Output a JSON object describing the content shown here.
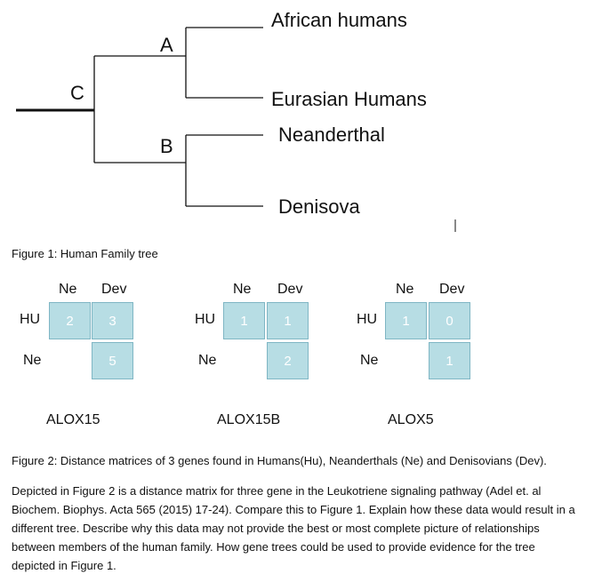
{
  "tree": {
    "nodes": {
      "a": "A",
      "b": "B",
      "c": "C"
    },
    "leaves": [
      "African humans",
      "Eurasian Humans",
      "Neanderthal",
      "Denisova"
    ]
  },
  "figure1_caption": "Figure 1: Human Family tree",
  "matrices": [
    {
      "gene": "ALOX15",
      "col_headers": [
        "Ne",
        "Dev"
      ],
      "row_headers": [
        "HU",
        "Ne"
      ],
      "hu_ne": "2",
      "hu_dev": "3",
      "ne_dev": "5"
    },
    {
      "gene": "ALOX15B",
      "col_headers": [
        "Ne",
        "Dev"
      ],
      "row_headers": [
        "HU",
        "Ne"
      ],
      "hu_ne": "1",
      "hu_dev": "1",
      "ne_dev": "2"
    },
    {
      "gene": "ALOX5",
      "col_headers": [
        "Ne",
        "Dev"
      ],
      "row_headers": [
        "HU",
        "Ne"
      ],
      "hu_ne": "1",
      "hu_dev": "0",
      "ne_dev": "1"
    }
  ],
  "figure2_caption": "Figure 2: Distance matrices of 3 genes found in Humans(Hu),  Neanderthals (Ne) and Denisovians (Dev).",
  "question": "Depicted in Figure 2 is a distance matrix for three gene in the Leukotriene signaling pathway (Adel  et. al Biochem.  Biophys.  Acta 565 (2015) 17-24). Compare this to Figure 1. Explain how these data would result in a different tree. Describe why this data may not provide the best or most complete picture of relationships between members of the human family. How gene trees could be used to provide evidence for the tree depicted in Figure 1.",
  "colors": {
    "cell_fill": "#b7dde4",
    "cell_border": "#7fb6c4",
    "line": "#111111"
  }
}
